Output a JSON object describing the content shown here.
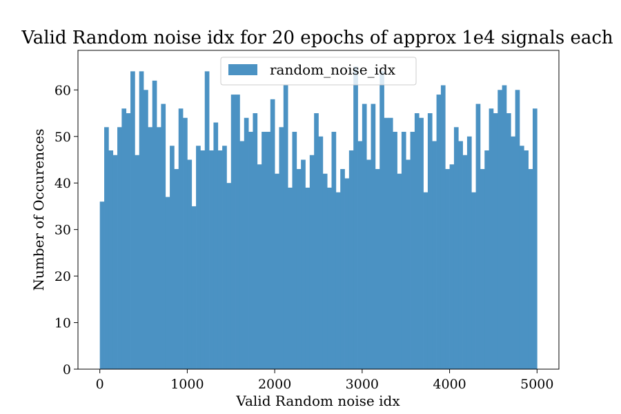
{
  "chart_data": {
    "type": "bar",
    "title": "Valid Random noise idx for 20 epochs of approx 1e4 signals each",
    "xlabel": "Valid Random noise idx",
    "ylabel": "Number of Occurences",
    "xlim": [
      -250,
      5250
    ],
    "ylim": [
      0,
      68.5
    ],
    "bin_start": 0,
    "bin_width": 50,
    "x_ticks": [
      0,
      1000,
      2000,
      3000,
      4000,
      5000
    ],
    "x_tick_labels": [
      "0",
      "1000",
      "2000",
      "3000",
      "4000",
      "5000"
    ],
    "y_ticks": [
      0,
      10,
      20,
      30,
      40,
      50,
      60
    ],
    "y_tick_labels": [
      "0",
      "10",
      "20",
      "30",
      "40",
      "50",
      "60"
    ],
    "grid": false,
    "legend_position": "upper-center",
    "series": [
      {
        "name": "random_noise_idx",
        "color": "#4b92c3",
        "values": [
          36,
          52,
          47,
          46,
          52,
          56,
          55,
          64,
          46,
          64,
          60,
          52,
          62,
          52,
          57,
          37,
          48,
          43,
          56,
          54,
          45,
          35,
          48,
          47,
          64,
          47,
          53,
          47,
          48,
          40,
          59,
          59,
          49,
          54,
          51,
          55,
          44,
          51,
          51,
          58,
          42,
          52,
          61,
          39,
          51,
          43,
          45,
          39,
          46,
          55,
          50,
          42,
          39,
          51,
          38,
          43,
          41,
          47,
          65,
          49,
          57,
          45,
          57,
          43,
          64,
          54,
          54,
          51,
          42,
          51,
          45,
          51,
          55,
          54,
          38,
          55,
          49,
          59,
          61,
          43,
          44,
          52,
          49,
          46,
          50,
          38,
          57,
          43,
          47,
          56,
          55,
          60,
          61,
          55,
          50,
          60,
          48,
          47,
          43,
          56
        ]
      }
    ]
  }
}
